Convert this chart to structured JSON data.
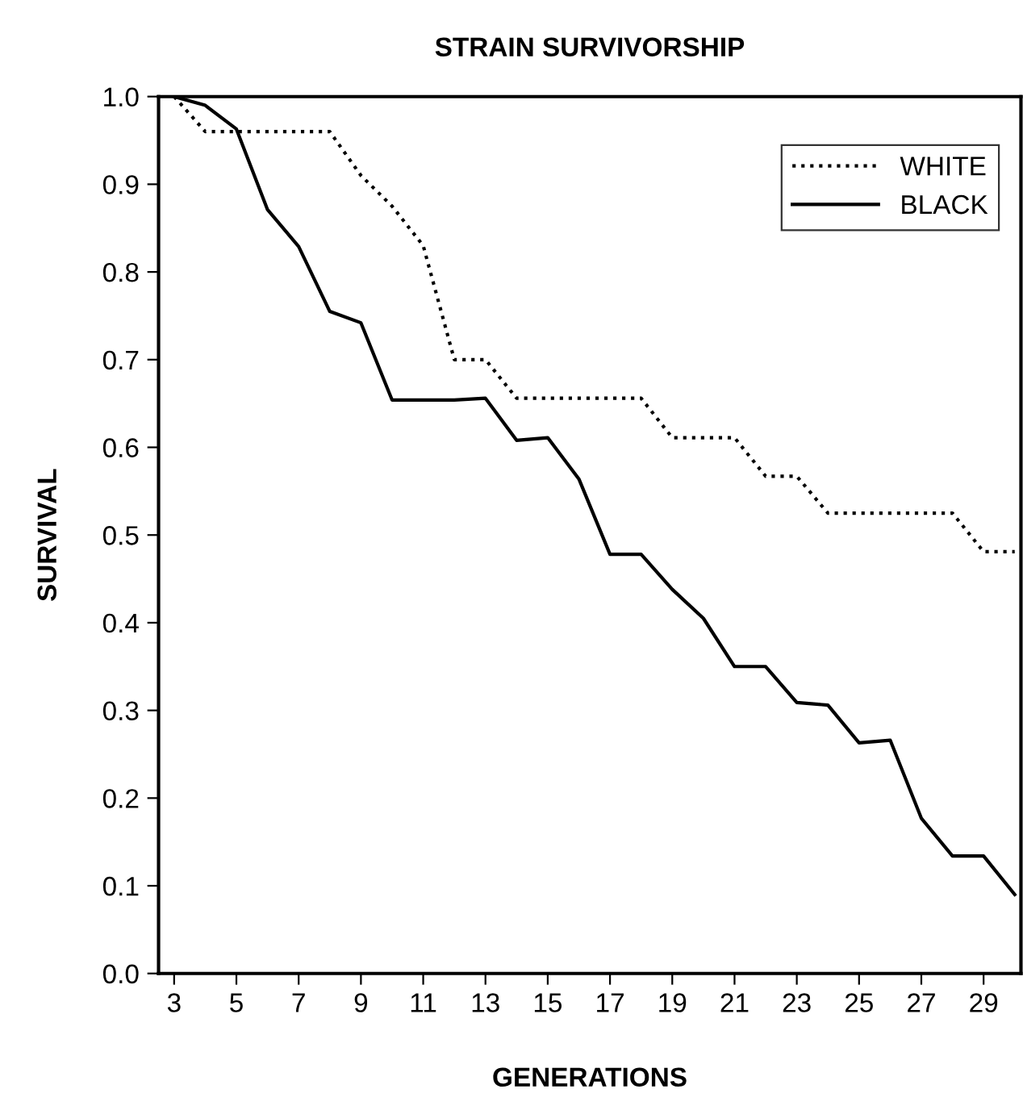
{
  "chart_data": {
    "type": "line",
    "title": "STRAIN SURVIVORSHIP",
    "xlabel": "GENERATIONS",
    "ylabel": "SURVIVAL",
    "x": [
      3,
      4,
      5,
      6,
      7,
      8,
      9,
      10,
      11,
      12,
      13,
      14,
      15,
      16,
      17,
      18,
      19,
      20,
      21,
      22,
      23,
      24,
      25,
      26,
      27,
      28,
      29,
      30
    ],
    "series": [
      {
        "name": "WHITE",
        "color": "#000000",
        "line_style": "dotted",
        "values": [
          1.0,
          0.96,
          0.96,
          0.96,
          0.96,
          0.96,
          0.91,
          0.875,
          0.83,
          0.7,
          0.7,
          0.656,
          0.656,
          0.656,
          0.656,
          0.656,
          0.611,
          0.611,
          0.611,
          0.567,
          0.567,
          0.525,
          0.525,
          0.525,
          0.525,
          0.525,
          0.481,
          0.481
        ]
      },
      {
        "name": "BLACK",
        "color": "#000000",
        "line_style": "solid",
        "values": [
          1.0,
          0.99,
          0.963,
          0.871,
          0.829,
          0.755,
          0.742,
          0.654,
          0.654,
          0.654,
          0.656,
          0.608,
          0.611,
          0.564,
          0.478,
          0.478,
          0.438,
          0.405,
          0.35,
          0.35,
          0.309,
          0.306,
          0.263,
          0.266,
          0.177,
          0.134,
          0.134,
          0.09
        ]
      }
    ],
    "xlim": [
      2.5,
      30.2
    ],
    "xticks": [
      3,
      5,
      7,
      9,
      11,
      13,
      15,
      17,
      19,
      21,
      23,
      25,
      27,
      29
    ],
    "ylim": [
      0,
      1.0
    ],
    "yticks": [
      {
        "value": 0,
        "label": "0.0"
      },
      0.1,
      0.2,
      0.3,
      0.4,
      0.5,
      0.6,
      0.7,
      0.8,
      0.9,
      {
        "value": 1,
        "label": "1.0"
      }
    ],
    "grid": false,
    "legend": "top right",
    "marker": "none"
  }
}
